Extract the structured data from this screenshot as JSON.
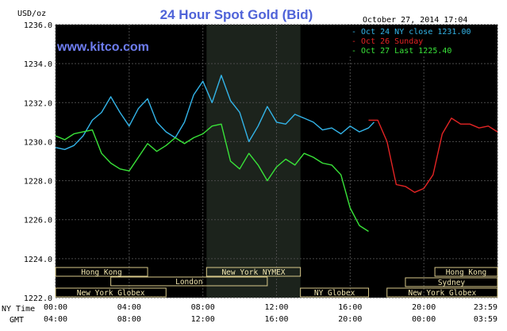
{
  "chart_data": {
    "type": "line",
    "title": "24 Hour Spot Gold (Bid)",
    "ylabel": "USD/oz",
    "timestamp": "October 27, 2014 17:04",
    "watermark": "www.kitco.com",
    "ylim": [
      1222,
      1236
    ],
    "yticks": [
      "1236.0",
      "1234.0",
      "1232.0",
      "1230.0",
      "1228.0",
      "1226.0",
      "1224.0",
      "1222.0"
    ],
    "x_label_ny": "NY Time",
    "x_label_gmt": "GMT",
    "xticks_ny": [
      "00:00",
      "04:00",
      "08:00",
      "12:00",
      "16:00",
      "20:00",
      "23:59"
    ],
    "xticks_gmt": [
      "04:00",
      "08:00",
      "12:00",
      "16:00",
      "20:00",
      "00:00",
      "03:59"
    ],
    "grid": true,
    "legend_position": "top-right",
    "series": [
      {
        "name": "Oct 24 NY close 1231.00",
        "color": "#33b4e8",
        "x": [
          0,
          0.5,
          1,
          1.5,
          2,
          2.5,
          3,
          3.5,
          4,
          4.5,
          5,
          5.5,
          6,
          6.5,
          7,
          7.5,
          8,
          8.5,
          9,
          9.5,
          10,
          10.5,
          11,
          11.5,
          12,
          12.5,
          13,
          13.5,
          14,
          14.5,
          15,
          15.5,
          16,
          16.5,
          17,
          17.3
        ],
        "y": [
          1229.7,
          1229.6,
          1229.8,
          1230.3,
          1231.1,
          1231.5,
          1232.3,
          1231.5,
          1230.8,
          1231.7,
          1232.2,
          1231.0,
          1230.5,
          1230.2,
          1231.0,
          1232.4,
          1233.1,
          1232.0,
          1233.4,
          1232.1,
          1231.5,
          1230.0,
          1230.8,
          1231.8,
          1231.0,
          1230.9,
          1231.4,
          1231.2,
          1231.0,
          1230.6,
          1230.7,
          1230.4,
          1230.8,
          1230.5,
          1230.7,
          1231.0
        ]
      },
      {
        "name": "Oct 26 Sunday",
        "color": "#e32424",
        "x": [
          17,
          17.5,
          18,
          18.5,
          19,
          19.5,
          20,
          20.5,
          21,
          21.5,
          22,
          22.5,
          23,
          23.5,
          24
        ],
        "y": [
          1231.1,
          1231.1,
          1230.0,
          1227.8,
          1227.7,
          1227.4,
          1227.6,
          1228.3,
          1230.4,
          1231.2,
          1230.9,
          1230.9,
          1230.7,
          1230.8,
          1230.5
        ]
      },
      {
        "name": "Oct 27 Last 1225.40",
        "color": "#39e339",
        "x": [
          0,
          0.5,
          1,
          1.5,
          2,
          2.5,
          3,
          3.5,
          4,
          4.5,
          5,
          5.5,
          6,
          6.5,
          7,
          7.5,
          8,
          8.5,
          9,
          9.5,
          10,
          10.5,
          11,
          11.5,
          12,
          12.5,
          13,
          13.5,
          14,
          14.5,
          15,
          15.5,
          16,
          16.5,
          17
        ],
        "y": [
          1230.3,
          1230.1,
          1230.4,
          1230.5,
          1230.6,
          1229.4,
          1228.9,
          1228.6,
          1228.5,
          1229.2,
          1229.9,
          1229.5,
          1229.8,
          1230.2,
          1229.9,
          1230.2,
          1230.4,
          1230.8,
          1230.9,
          1229.0,
          1228.6,
          1229.4,
          1228.8,
          1228.0,
          1228.7,
          1229.1,
          1228.8,
          1229.4,
          1229.2,
          1228.9,
          1228.8,
          1228.3,
          1226.6,
          1225.7,
          1225.4
        ]
      }
    ],
    "markets": [
      {
        "name": "Hong Kong",
        "start": 0,
        "end": 5
      },
      {
        "name": "London",
        "start": 3,
        "end": 11.5
      },
      {
        "name": "New York Globex",
        "start": 0,
        "end": 6
      },
      {
        "name": "New York NYMEX",
        "start": 8.2,
        "end": 13.3
      },
      {
        "name": "NY Globex",
        "start": 13.3,
        "end": 17
      },
      {
        "name": "Hong Kong",
        "start": 20.6,
        "end": 24
      },
      {
        "name": "Sydney",
        "start": 19,
        "end": 24
      },
      {
        "name": "New York Globex",
        "start": 18,
        "end": 24
      }
    ]
  }
}
